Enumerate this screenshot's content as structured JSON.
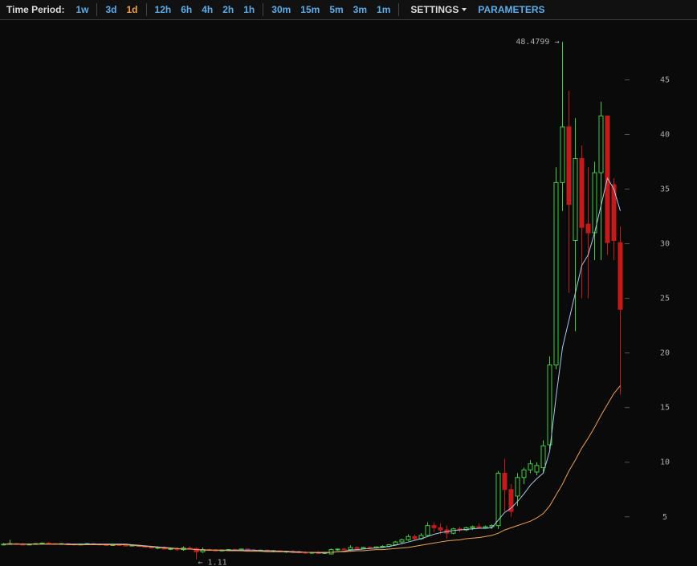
{
  "toolbar": {
    "label": "Time Period:",
    "groups": [
      [
        "1w"
      ],
      [
        "3d",
        "1d"
      ],
      [
        "12h",
        "6h",
        "4h",
        "2h",
        "1h"
      ],
      [
        "30m",
        "15m",
        "5m",
        "3m",
        "1m"
      ]
    ],
    "active": "1d",
    "settings": "SETTINGS",
    "parameters": "PARAMETERS"
  },
  "chart_data": {
    "type": "candlestick",
    "ylim": [
      0.5,
      50.4
    ],
    "yticks": [
      5,
      10,
      15,
      20,
      25,
      30,
      35,
      40,
      45
    ],
    "up_color": "#3fcf3f",
    "down_color": "#c41a1a",
    "annotations": [
      {
        "text": "48.4799 →",
        "at": 87
      },
      {
        "text": "← 1.11",
        "at": 30
      }
    ],
    "open": [
      2.45,
      2.5,
      2.55,
      2.5,
      2.45,
      2.5,
      2.55,
      2.6,
      2.55,
      2.5,
      2.55,
      2.5,
      2.45,
      2.5,
      2.55,
      2.5,
      2.45,
      2.4,
      2.45,
      2.4,
      2.35,
      2.4,
      2.3,
      2.25,
      2.15,
      2.2,
      2.05,
      2.1,
      2.0,
      2.15,
      2.1,
      1.8,
      2.0,
      1.95,
      1.9,
      1.95,
      2.0,
      1.95,
      2.05,
      1.95,
      1.9,
      1.95,
      1.85,
      1.9,
      1.8,
      1.85,
      1.8,
      1.75,
      1.7,
      1.75,
      1.65,
      1.6,
      2.0,
      2.05,
      2.0,
      2.2,
      2.1,
      2.2,
      2.15,
      2.25,
      2.3,
      2.45,
      2.7,
      2.9,
      3.2,
      3.0,
      3.3,
      4.2,
      4.0,
      3.8,
      3.5,
      3.9,
      3.8,
      4.0,
      4.1,
      4.0,
      4.1,
      4.2,
      9.0,
      7.5,
      6.9,
      8.6,
      9.3,
      9.1,
      9.5,
      11.6,
      18.9,
      35.6,
      40.7,
      30.3,
      37.8,
      31.8,
      31.0,
      36.5,
      41.7,
      35.4,
      30.1
    ],
    "high": [
      2.6,
      2.9,
      2.6,
      2.6,
      2.55,
      2.6,
      2.65,
      2.7,
      2.6,
      2.6,
      2.6,
      2.55,
      2.55,
      2.6,
      2.6,
      2.55,
      2.5,
      2.5,
      2.5,
      2.45,
      2.45,
      2.45,
      2.4,
      2.35,
      2.3,
      2.3,
      2.2,
      2.2,
      2.3,
      2.3,
      2.2,
      2.2,
      2.1,
      2.05,
      2.0,
      2.05,
      2.1,
      2.1,
      2.1,
      2.05,
      2.0,
      2.0,
      1.95,
      1.95,
      1.9,
      1.95,
      1.9,
      1.85,
      1.8,
      1.85,
      1.8,
      2.1,
      2.1,
      2.15,
      2.4,
      2.3,
      2.25,
      2.3,
      2.3,
      2.4,
      2.5,
      2.8,
      3.0,
      3.4,
      3.4,
      3.5,
      4.5,
      4.5,
      4.4,
      4.2,
      4.0,
      4.1,
      4.1,
      4.2,
      4.4,
      4.2,
      4.3,
      9.2,
      10.3,
      8.0,
      9.0,
      9.5,
      10.2,
      10.0,
      12.0,
      19.7,
      37.0,
      48.4799,
      44.0,
      41.5,
      39.0,
      37.0,
      37.5,
      43.0,
      41.7,
      36.0,
      31.6
    ],
    "low": [
      2.4,
      2.45,
      2.45,
      2.4,
      2.4,
      2.45,
      2.5,
      2.5,
      2.45,
      2.45,
      2.45,
      2.4,
      2.4,
      2.45,
      2.45,
      2.4,
      2.35,
      2.35,
      2.35,
      2.3,
      2.3,
      2.25,
      2.2,
      2.1,
      2.05,
      2.0,
      1.95,
      1.9,
      1.9,
      2.0,
      1.11,
      1.7,
      1.9,
      1.85,
      1.85,
      1.9,
      1.9,
      1.85,
      1.9,
      1.85,
      1.8,
      1.8,
      1.75,
      1.75,
      1.7,
      1.75,
      1.65,
      1.6,
      1.6,
      1.6,
      1.6,
      1.55,
      1.9,
      1.95,
      1.95,
      2.05,
      2.05,
      2.1,
      2.1,
      2.15,
      2.2,
      2.4,
      2.6,
      2.8,
      2.9,
      2.9,
      3.2,
      3.6,
      3.4,
      3.0,
      3.4,
      3.6,
      3.7,
      3.8,
      3.9,
      3.9,
      3.9,
      3.9,
      5.5,
      5.0,
      6.0,
      8.0,
      9.0,
      8.8,
      9.0,
      11.2,
      18.5,
      33.0,
      25.5,
      22.0,
      25.0,
      25.0,
      28.5,
      28.5,
      29.0,
      28.5,
      16.2
    ],
    "close": [
      2.5,
      2.55,
      2.5,
      2.45,
      2.5,
      2.55,
      2.6,
      2.55,
      2.5,
      2.55,
      2.5,
      2.45,
      2.5,
      2.55,
      2.5,
      2.45,
      2.4,
      2.45,
      2.4,
      2.35,
      2.4,
      2.3,
      2.25,
      2.15,
      2.2,
      2.05,
      2.1,
      2.0,
      2.15,
      2.1,
      1.8,
      2.0,
      1.95,
      1.9,
      1.95,
      2.0,
      1.95,
      2.05,
      1.95,
      1.9,
      1.95,
      1.85,
      1.9,
      1.8,
      1.85,
      1.8,
      1.75,
      1.7,
      1.75,
      1.65,
      1.75,
      2.0,
      2.05,
      2.0,
      2.2,
      2.1,
      2.2,
      2.15,
      2.25,
      2.3,
      2.45,
      2.7,
      2.9,
      3.2,
      3.0,
      3.3,
      4.2,
      4.0,
      3.8,
      3.5,
      3.9,
      3.8,
      4.0,
      4.1,
      4.0,
      4.1,
      4.2,
      9.0,
      7.5,
      5.5,
      8.6,
      9.3,
      9.85,
      9.7,
      11.5,
      18.9,
      35.6,
      40.7,
      33.6,
      37.8,
      31.5,
      31.0,
      36.5,
      41.7,
      30.1,
      30.3,
      24.0
    ],
    "series": [
      {
        "color": "#a9c8e8",
        "values": [
          2.5,
          2.5,
          2.5,
          2.5,
          2.5,
          2.5,
          2.5,
          2.5,
          2.5,
          2.5,
          2.5,
          2.5,
          2.5,
          2.5,
          2.5,
          2.5,
          2.5,
          2.5,
          2.5,
          2.5,
          2.45,
          2.4,
          2.35,
          2.3,
          2.25,
          2.2,
          2.15,
          2.1,
          2.05,
          2.05,
          2.0,
          1.95,
          1.95,
          1.95,
          1.95,
          1.95,
          1.95,
          1.95,
          1.95,
          1.95,
          1.9,
          1.9,
          1.9,
          1.85,
          1.85,
          1.8,
          1.8,
          1.75,
          1.75,
          1.7,
          1.7,
          1.75,
          1.8,
          1.85,
          1.95,
          2.0,
          2.05,
          2.1,
          2.15,
          2.2,
          2.3,
          2.4,
          2.55,
          2.7,
          2.85,
          3.0,
          3.2,
          3.4,
          3.55,
          3.65,
          3.75,
          3.8,
          3.85,
          3.9,
          3.95,
          3.95,
          4.0,
          4.7,
          5.4,
          5.8,
          6.4,
          7.1,
          7.9,
          8.5,
          9.0,
          11,
          16,
          20.5,
          23,
          25.5,
          28,
          29,
          31,
          33.5,
          36.0,
          35.0,
          33.0
        ]
      },
      {
        "color": "#f0a050",
        "values": [
          2.5,
          2.5,
          2.5,
          2.5,
          2.5,
          2.5,
          2.5,
          2.5,
          2.5,
          2.5,
          2.45,
          2.45,
          2.45,
          2.45,
          2.45,
          2.45,
          2.45,
          2.45,
          2.45,
          2.45,
          2.4,
          2.35,
          2.3,
          2.25,
          2.2,
          2.15,
          2.1,
          2.1,
          2.05,
          2.05,
          2.0,
          2.0,
          1.95,
          1.95,
          1.95,
          1.9,
          1.9,
          1.9,
          1.85,
          1.85,
          1.85,
          1.8,
          1.8,
          1.8,
          1.8,
          1.75,
          1.75,
          1.75,
          1.75,
          1.75,
          1.75,
          1.75,
          1.8,
          1.8,
          1.85,
          1.9,
          1.9,
          1.95,
          2.0,
          2.0,
          2.05,
          2.1,
          2.15,
          2.2,
          2.3,
          2.4,
          2.5,
          2.6,
          2.7,
          2.8,
          2.85,
          2.9,
          3.0,
          3.05,
          3.1,
          3.2,
          3.3,
          3.5,
          3.8,
          4.0,
          4.2,
          4.4,
          4.6,
          4.9,
          5.3,
          6.0,
          7.0,
          8.0,
          9.2,
          10.2,
          11.3,
          12.2,
          13.2,
          14.3,
          15.3,
          16.3,
          17.0
        ]
      }
    ]
  }
}
